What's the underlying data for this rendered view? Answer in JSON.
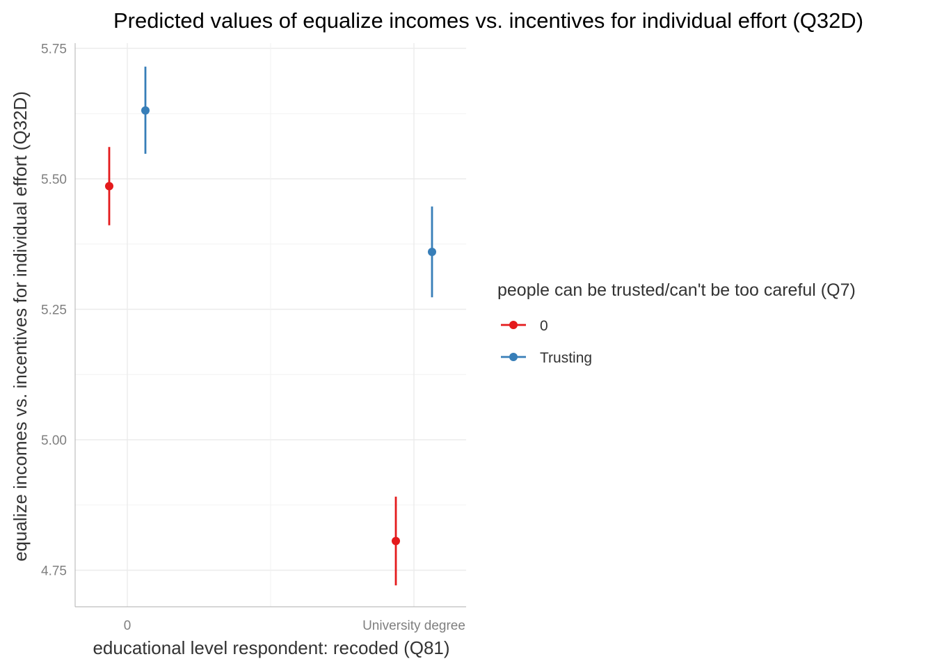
{
  "chart_data": {
    "type": "scatter",
    "title": "Predicted values of equalize incomes vs. incentives for individual effort (Q32D)",
    "xlabel": "educational level respondent: recoded (Q81)",
    "ylabel": "equalize incomes vs. incentives for individual effort (Q32D)",
    "categories": [
      "0",
      "University degree"
    ],
    "ylim": [
      4.68,
      5.76
    ],
    "yticks": [
      4.75,
      5.0,
      5.25,
      5.5,
      5.75
    ],
    "ytick_labels": [
      "4.75",
      "5.00",
      "5.25",
      "5.50",
      "5.75"
    ],
    "grid": true,
    "legend": {
      "title": "people can be trusted/can't be too careful (Q7)",
      "position": "right"
    },
    "series": [
      {
        "name": "0",
        "color": "#E41A1C",
        "values": [
          5.486,
          4.806
        ],
        "ci_low": [
          5.411,
          4.721
        ],
        "ci_high": [
          5.561,
          4.891
        ]
      },
      {
        "name": "Trusting",
        "color": "#377EB8",
        "values": [
          5.631,
          5.36
        ],
        "ci_low": [
          5.548,
          5.273
        ],
        "ci_high": [
          5.715,
          5.447
        ]
      }
    ]
  }
}
